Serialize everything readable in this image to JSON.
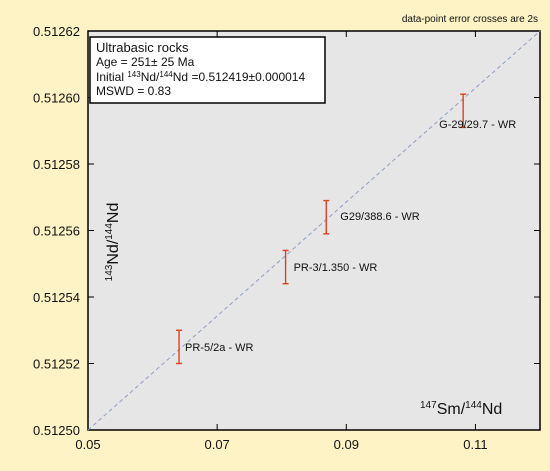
{
  "chart_data": {
    "type": "scatter",
    "note": "data-point error crosses are 2s",
    "xlabel": {
      "super1": "147",
      "base1": "Sm/",
      "super2": "144",
      "base2": "Nd"
    },
    "ylabel": {
      "super1": "143",
      "base1": "Nd/",
      "super2": "144",
      "base2": "Nd"
    },
    "xlim": [
      0.05,
      0.12
    ],
    "ylim": [
      0.5125,
      0.51262
    ],
    "x_ticks": [
      0.05,
      0.07,
      0.09,
      0.11
    ],
    "x_tick_labels": [
      "0.05",
      "0.07",
      "0.09",
      "0.11"
    ],
    "y_ticks": [
      0.5125,
      0.51252,
      0.51254,
      0.51256,
      0.51258,
      0.5126,
      0.51262
    ],
    "y_tick_labels": [
      "0.51250",
      "0.51252",
      "0.51254",
      "0.51256",
      "0.51258",
      "0.51260",
      "0.51262"
    ],
    "info_box": {
      "title": "Ultrabasic rocks",
      "age": "Age = 251± 25 Ma",
      "initial_prefix": "Initial ",
      "initial_sup1": "143",
      "initial_mid": "Nd/",
      "initial_sup2": "144",
      "initial_suffix": "Nd =0.512419±0.000014",
      "mswd": "MSWD = 0.83"
    },
    "isochron": {
      "x": [
        0.05,
        0.12
      ],
      "y": [
        0.5125,
        0.51262
      ]
    },
    "points": [
      {
        "label": "PR-5/2a - WR",
        "x": 0.0641,
        "y": 0.512525,
        "err_low": 0.51252,
        "err_high": 0.51253
      },
      {
        "label": "PR-3/1.350 - WR",
        "x": 0.0806,
        "y": 0.512549,
        "err_low": 0.512544,
        "err_high": 0.512554
      },
      {
        "label": "G29/388.6 - WR",
        "x": 0.0869,
        "y": 0.512564,
        "err_low": 0.512559,
        "err_high": 0.512569
      },
      {
        "label": "G-29/29.7 - WR",
        "x": 0.1081,
        "y": 0.512596,
        "err_low": 0.512591,
        "err_high": 0.512601
      }
    ],
    "colors": {
      "background": "#fdf3c4",
      "plot_area": "#e6e6e6",
      "error_bar": "#e0401a",
      "isochron": "#8e9cc6"
    }
  }
}
